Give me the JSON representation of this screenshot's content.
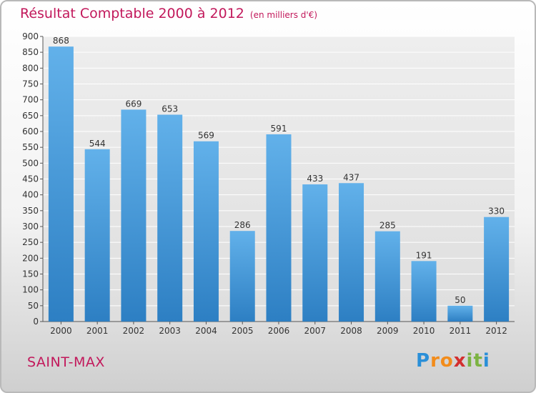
{
  "chart_data": {
    "type": "bar",
    "title": "Résultat Comptable 2000 à 2012",
    "subtitle": "(en milliers d'€)",
    "categories": [
      "2000",
      "2001",
      "2002",
      "2003",
      "2004",
      "2005",
      "2006",
      "2007",
      "2008",
      "2009",
      "2010",
      "2011",
      "2012"
    ],
    "values": [
      868,
      544,
      669,
      653,
      569,
      286,
      591,
      433,
      437,
      285,
      191,
      50,
      330
    ],
    "ylim": [
      0,
      900
    ],
    "yticks": [
      0,
      50,
      100,
      150,
      200,
      250,
      300,
      350,
      400,
      450,
      500,
      550,
      600,
      650,
      700,
      750,
      800,
      850,
      900
    ],
    "grid": true,
    "xlabel": "",
    "ylabel": ""
  },
  "location": "SAINT-MAX",
  "logo": {
    "text": "Proxiti",
    "letter_colors": [
      "#2a8fd8",
      "#f28c1b",
      "#f28c1b",
      "#d32f2f",
      "#7cb342",
      "#7cb342",
      "#2a8fd8"
    ]
  },
  "colors": {
    "title": "#c2185b",
    "bar_light": "#62b1ea",
    "bar_dark": "#2d7fc3",
    "grid": "#ffffff",
    "plot_bg": "#e4e4e4"
  }
}
